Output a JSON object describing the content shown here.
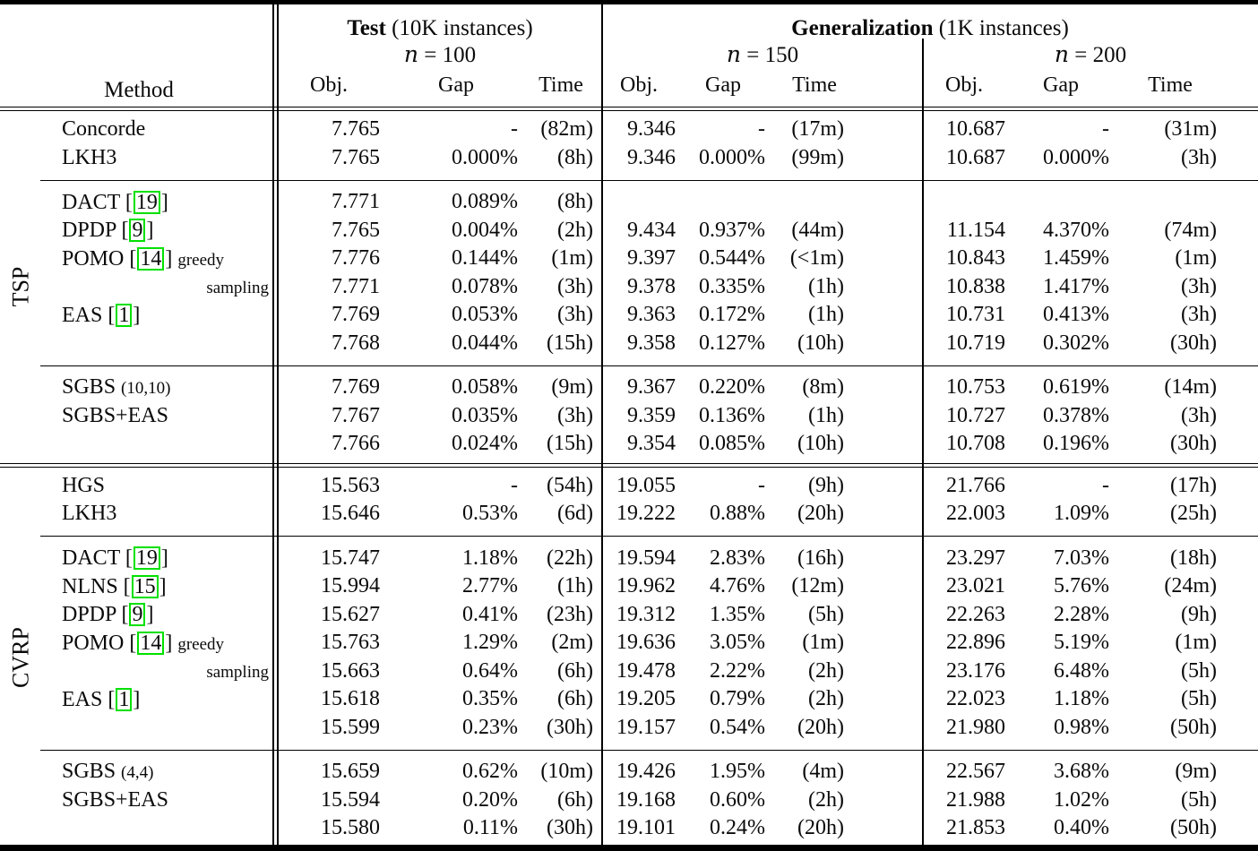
{
  "header": {
    "method_label": "Method",
    "test": {
      "title": "Test",
      "subtitle": " (10K instances)",
      "col": {
        "var": "n",
        "rest": " = 100"
      }
    },
    "gen": {
      "title": "Generalization",
      "subtitle": " (1K instances)",
      "cols": [
        {
          "var": "n",
          "rest": " = 150"
        },
        {
          "var": "n",
          "rest": " = 200"
        }
      ]
    },
    "subcols": [
      "Obj.",
      "Gap",
      "Time"
    ]
  },
  "colors": {
    "citation_box": "#00e000",
    "rule": "#000000"
  },
  "sections": [
    {
      "label": "TSP",
      "groups": [
        [
          {
            "m": {
              "label": "Concorde"
            },
            "v": [
              "7.765",
              "-",
              "(82m)",
              "9.346",
              "-",
              "(17m)",
              "10.687",
              "-",
              "(31m)"
            ]
          },
          {
            "m": {
              "label": "LKH3"
            },
            "v": [
              "7.765",
              "0.000%",
              "(8h)",
              "9.346",
              "0.000%",
              "(99m)",
              "10.687",
              "0.000%",
              "(3h)"
            ]
          }
        ],
        [
          {
            "m": {
              "label": "DACT",
              "cite": "19"
            },
            "v": [
              "7.771",
              "0.089%",
              "(8h)",
              "",
              "",
              "",
              "",
              "",
              ""
            ]
          },
          {
            "m": {
              "label": "DPDP",
              "cite": "9"
            },
            "v": [
              "7.765",
              "0.004%",
              "(2h)",
              "9.434",
              "0.937%",
              "(44m)",
              "11.154",
              "4.370%",
              "(74m)"
            ]
          },
          {
            "m": {
              "label": "POMO",
              "cite": "14",
              "note": "greedy"
            },
            "v": [
              "7.776",
              "0.144%",
              "(1m)",
              "9.397",
              "0.544%",
              "(<1m)",
              "10.843",
              "1.459%",
              "(1m)"
            ]
          },
          {
            "m": {
              "note": "sampling",
              "align": "right"
            },
            "v": [
              "7.771",
              "0.078%",
              "(3h)",
              "9.378",
              "0.335%",
              "(1h)",
              "10.838",
              "1.417%",
              "(3h)"
            ]
          },
          {
            "m": {
              "label": "EAS",
              "cite": "1"
            },
            "v": [
              "7.769",
              "0.053%",
              "(3h)",
              "9.363",
              "0.172%",
              "(1h)",
              "10.731",
              "0.413%",
              "(3h)"
            ]
          },
          {
            "m": {},
            "v": [
              "7.768",
              "0.044%",
              "(15h)",
              "9.358",
              "0.127%",
              "(10h)",
              "10.719",
              "0.302%",
              "(30h)"
            ]
          }
        ],
        [
          {
            "m": {
              "label": "SGBS",
              "note": "(10,10)"
            },
            "v": [
              "7.769",
              "0.058%",
              "(9m)",
              "9.367",
              "0.220%",
              "(8m)",
              "10.753",
              "0.619%",
              "(14m)"
            ]
          },
          {
            "m": {
              "label": "SGBS+EAS"
            },
            "v": [
              "7.767",
              "0.035%",
              "(3h)",
              "9.359",
              "0.136%",
              "(1h)",
              "10.727",
              "0.378%",
              "(3h)"
            ]
          },
          {
            "m": {},
            "v": [
              "7.766",
              "0.024%",
              "(15h)",
              "9.354",
              "0.085%",
              "(10h)",
              "10.708",
              "0.196%",
              "(30h)"
            ]
          }
        ]
      ]
    },
    {
      "label": "CVRP",
      "groups": [
        [
          {
            "m": {
              "label": "HGS"
            },
            "v": [
              "15.563",
              "-",
              "(54h)",
              "19.055",
              "-",
              "(9h)",
              "21.766",
              "-",
              "(17h)"
            ]
          },
          {
            "m": {
              "label": "LKH3"
            },
            "v": [
              "15.646",
              "0.53%",
              "(6d)",
              "19.222",
              "0.88%",
              "(20h)",
              "22.003",
              "1.09%",
              "(25h)"
            ]
          }
        ],
        [
          {
            "m": {
              "label": "DACT",
              "cite": "19"
            },
            "v": [
              "15.747",
              "1.18%",
              "(22h)",
              "19.594",
              "2.83%",
              "(16h)",
              "23.297",
              "7.03%",
              "(18h)"
            ]
          },
          {
            "m": {
              "label": "NLNS",
              "cite": "15"
            },
            "v": [
              "15.994",
              "2.77%",
              "(1h)",
              "19.962",
              "4.76%",
              "(12m)",
              "23.021",
              "5.76%",
              "(24m)"
            ]
          },
          {
            "m": {
              "label": "DPDP",
              "cite": "9"
            },
            "v": [
              "15.627",
              "0.41%",
              "(23h)",
              "19.312",
              "1.35%",
              "(5h)",
              "22.263",
              "2.28%",
              "(9h)"
            ]
          },
          {
            "m": {
              "label": "POMO",
              "cite": "14",
              "note": "greedy"
            },
            "v": [
              "15.763",
              "1.29%",
              "(2m)",
              "19.636",
              "3.05%",
              "(1m)",
              "22.896",
              "5.19%",
              "(1m)"
            ]
          },
          {
            "m": {
              "note": "sampling",
              "align": "right"
            },
            "v": [
              "15.663",
              "0.64%",
              "(6h)",
              "19.478",
              "2.22%",
              "(2h)",
              "23.176",
              "6.48%",
              "(5h)"
            ]
          },
          {
            "m": {
              "label": "EAS",
              "cite": "1"
            },
            "v": [
              "15.618",
              "0.35%",
              "(6h)",
              "19.205",
              "0.79%",
              "(2h)",
              "22.023",
              "1.18%",
              "(5h)"
            ]
          },
          {
            "m": {},
            "v": [
              "15.599",
              "0.23%",
              "(30h)",
              "19.157",
              "0.54%",
              "(20h)",
              "21.980",
              "0.98%",
              "(50h)"
            ]
          }
        ],
        [
          {
            "m": {
              "label": "SGBS",
              "note": "(4,4)"
            },
            "v": [
              "15.659",
              "0.62%",
              "(10m)",
              "19.426",
              "1.95%",
              "(4m)",
              "22.567",
              "3.68%",
              "(9m)"
            ]
          },
          {
            "m": {
              "label": "SGBS+EAS"
            },
            "v": [
              "15.594",
              "0.20%",
              "(6h)",
              "19.168",
              "0.60%",
              "(2h)",
              "21.988",
              "1.02%",
              "(5h)"
            ]
          },
          {
            "m": {},
            "v": [
              "15.580",
              "0.11%",
              "(30h)",
              "19.101",
              "0.24%",
              "(20h)",
              "21.853",
              "0.40%",
              "(50h)"
            ]
          }
        ]
      ]
    }
  ]
}
